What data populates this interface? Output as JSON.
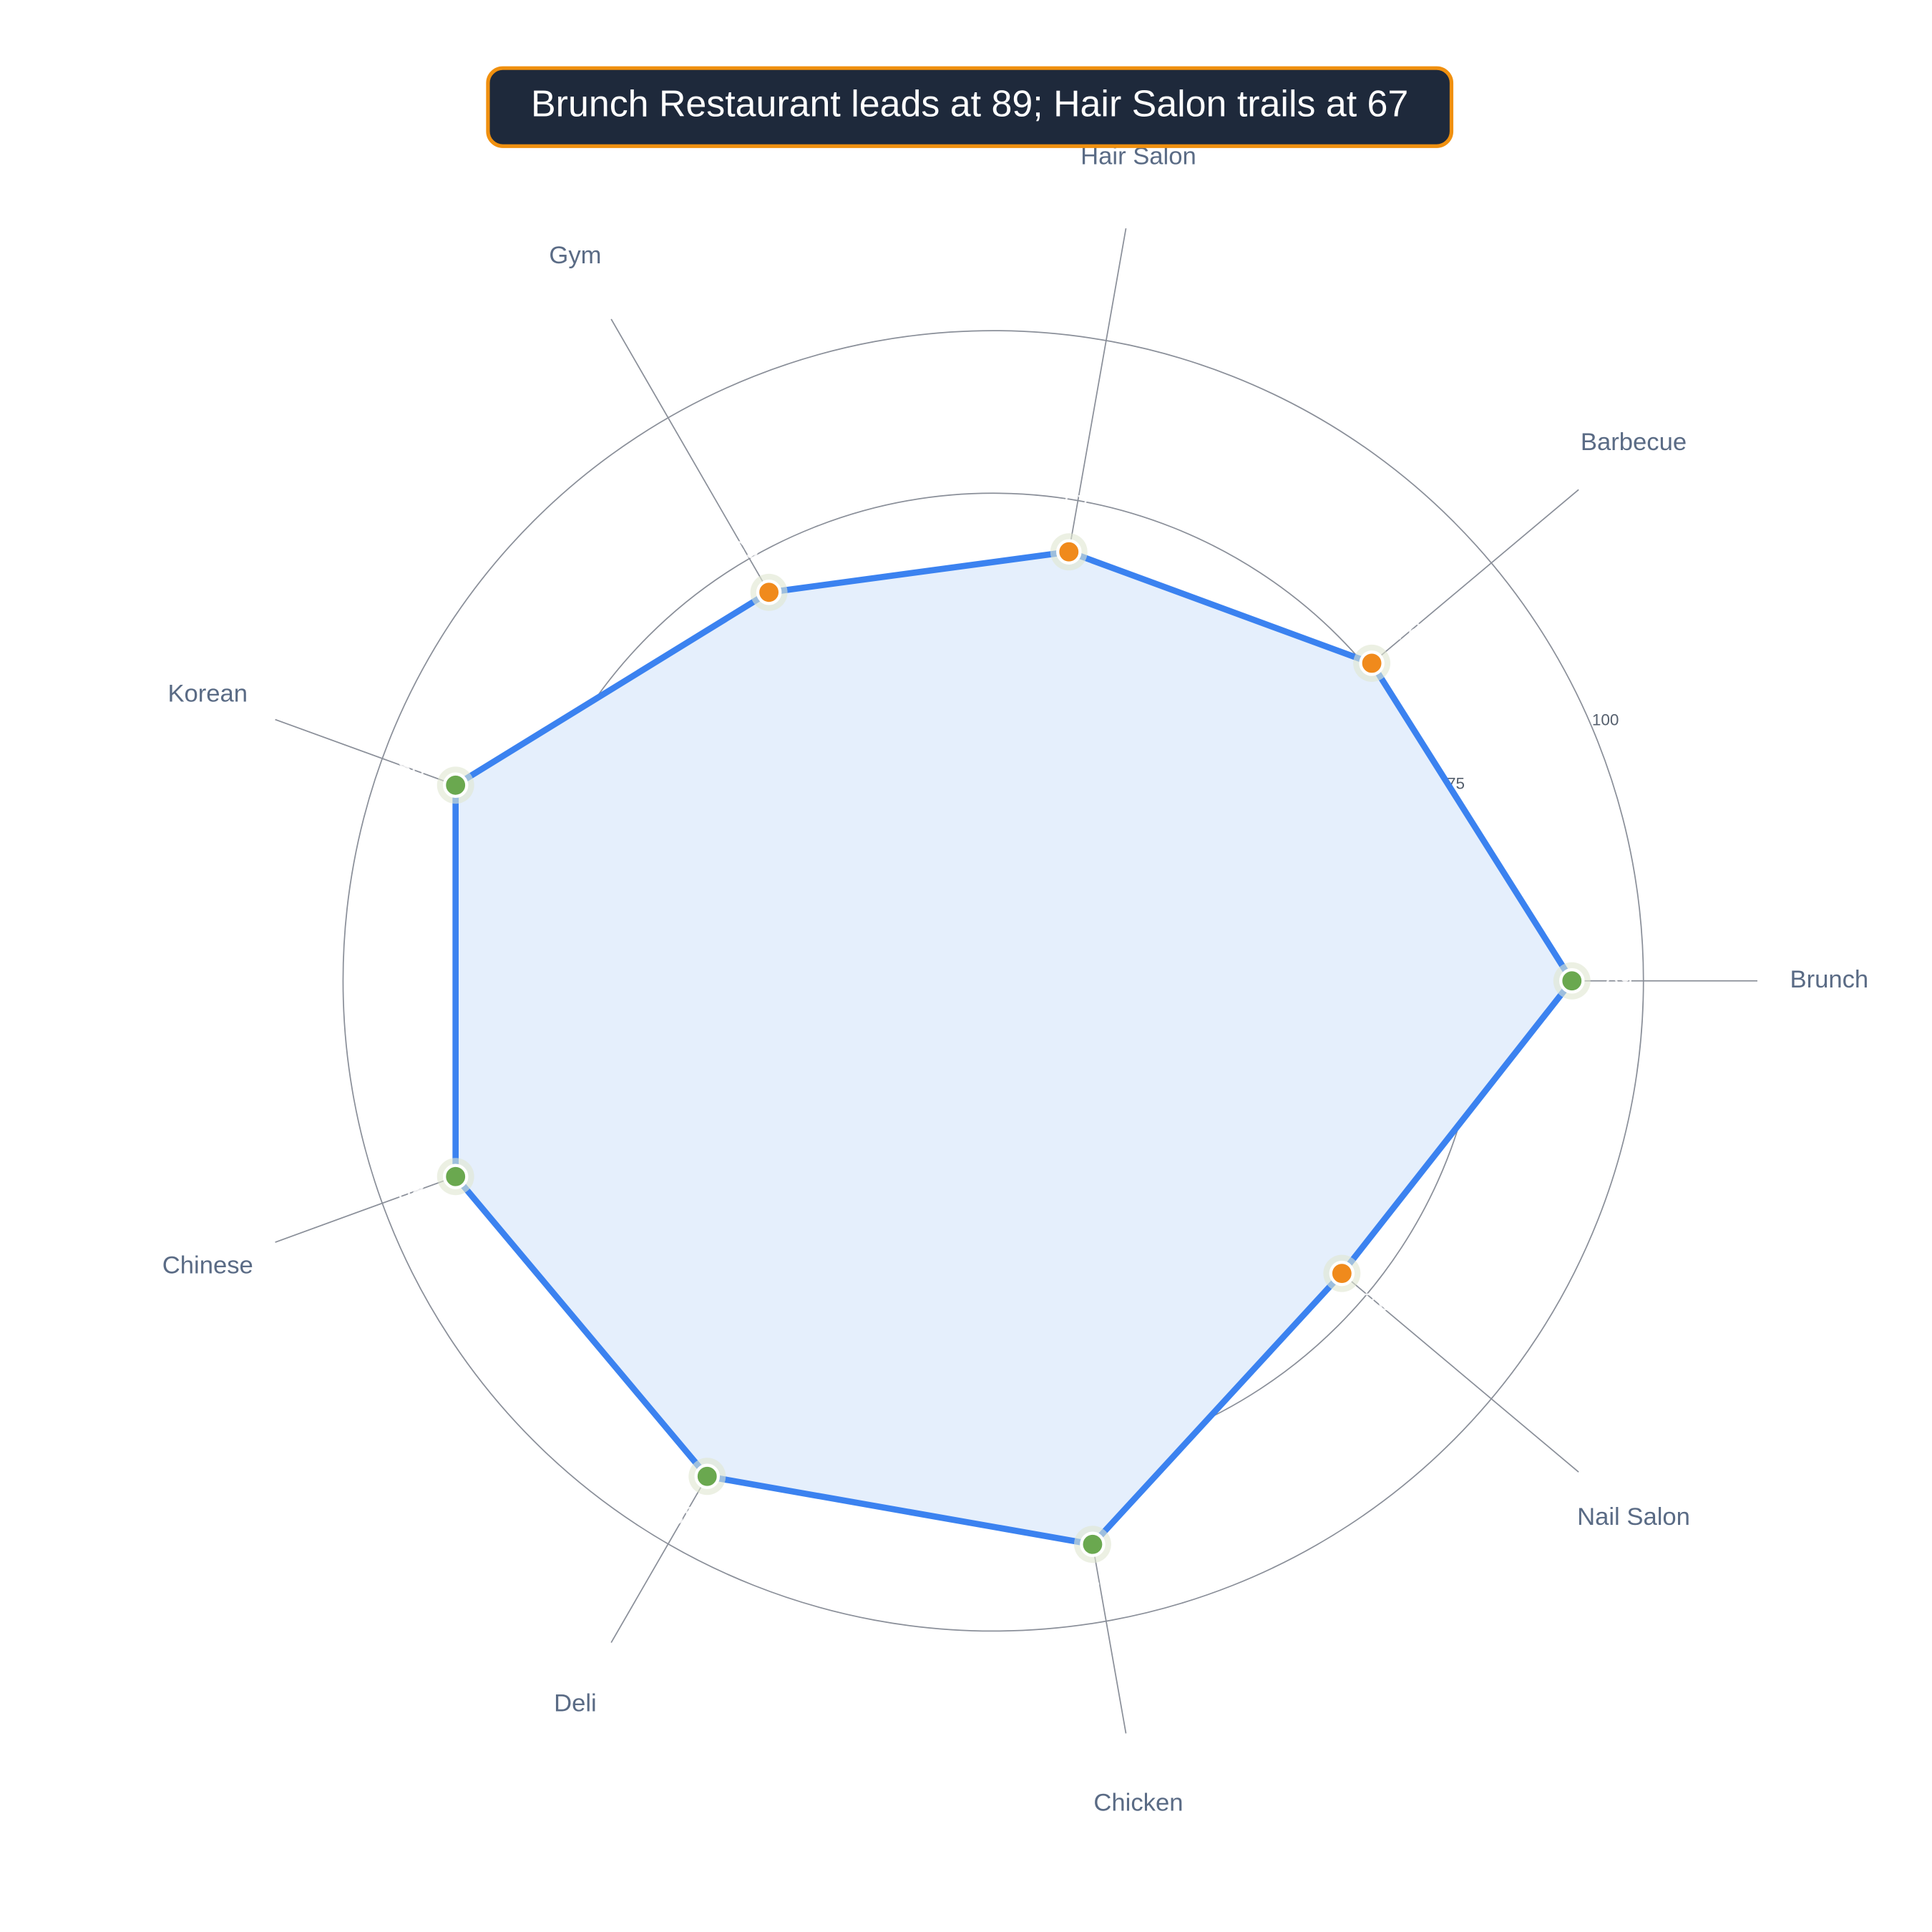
{
  "chart_data": {
    "type": "radar",
    "title": "Brunch Restaurant leads at 89; Hair Salon trails at 67",
    "categories": [
      "Brunch",
      "Barbecue",
      "Hair Salon",
      "Gym",
      "Korean",
      "Chinese",
      "Deli",
      "Chicken",
      "Nail Salon"
    ],
    "values": [
      89,
      76,
      67,
      69,
      88,
      88,
      88,
      88,
      70
    ],
    "color": "#3b82f0",
    "fill_color": "#e5effc",
    "marker_colors": [
      "#6aa84f",
      "#f08a1c",
      "#f08a1c",
      "#f08a1c",
      "#6aa84f",
      "#6aa84f",
      "#6aa84f",
      "#6aa84f",
      "#f08a1c"
    ],
    "rlim": [
      0,
      100
    ],
    "rticks": [
      25,
      50,
      75,
      100
    ],
    "grid": true
  }
}
